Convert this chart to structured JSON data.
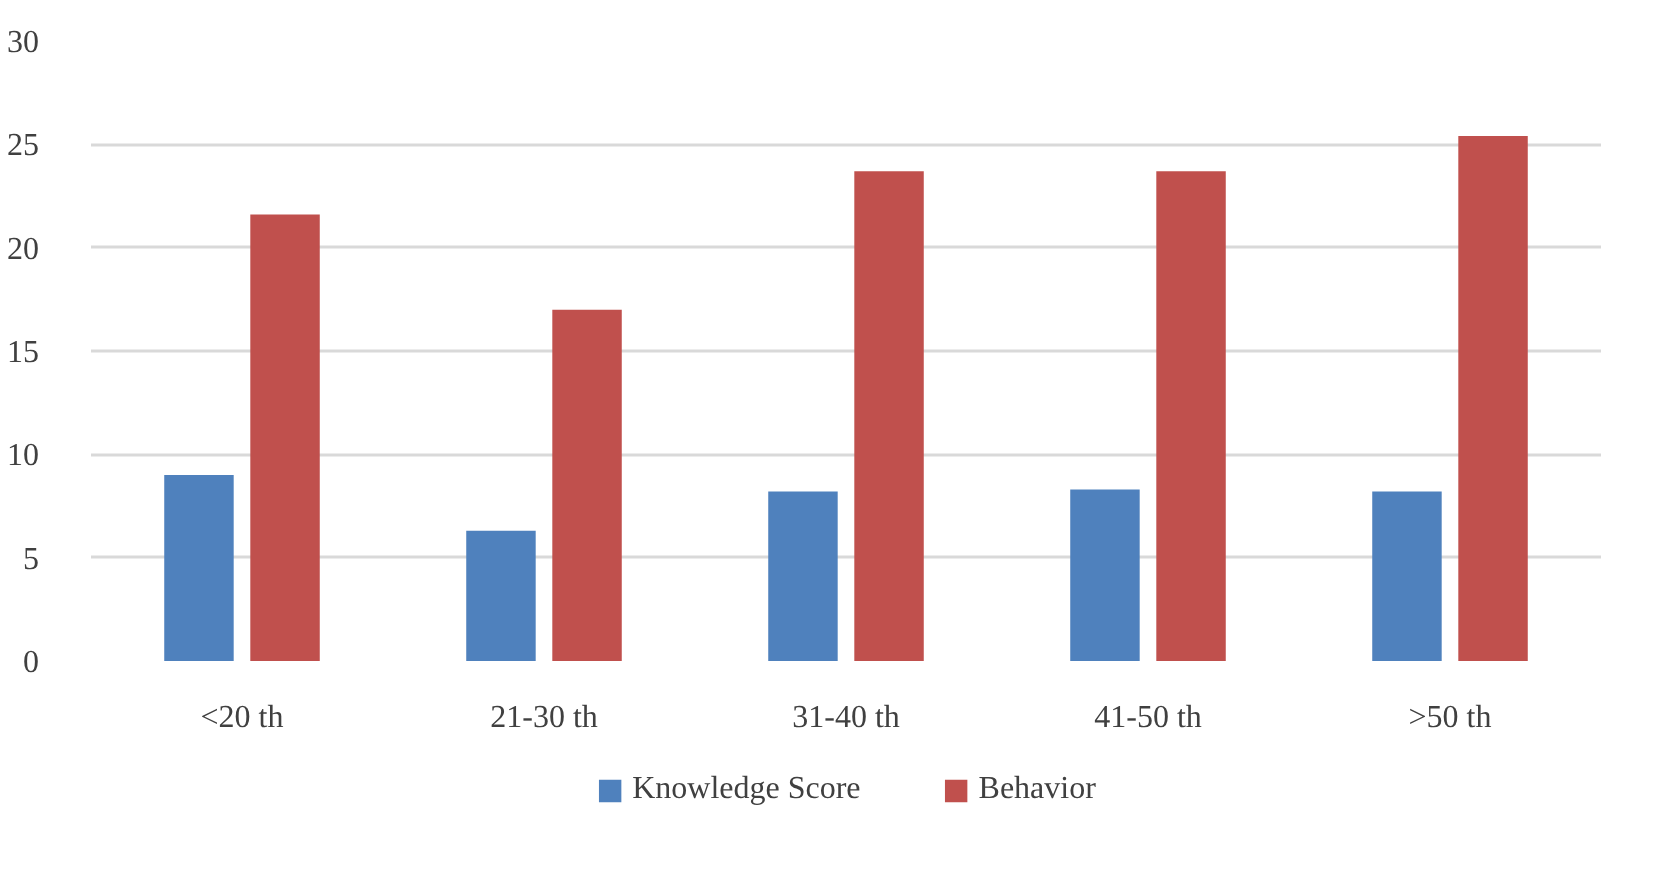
{
  "chart_data": {
    "type": "bar",
    "categories": [
      "<20 th",
      "21-30 th",
      "31-40 th",
      "41-50 th",
      ">50 th"
    ],
    "series": [
      {
        "name": "Knowledge Score",
        "color": "#4f81bd",
        "values": [
          9.0,
          6.3,
          8.2,
          8.3,
          8.2
        ]
      },
      {
        "name": "Behavior",
        "color": "#c0504d",
        "values": [
          21.6,
          17.0,
          23.7,
          23.7,
          25.4
        ]
      }
    ],
    "ylim": [
      0,
      30
    ],
    "yticks": [
      0,
      5,
      10,
      15,
      20,
      25,
      30
    ],
    "grid": "y",
    "legend": "bottom"
  }
}
